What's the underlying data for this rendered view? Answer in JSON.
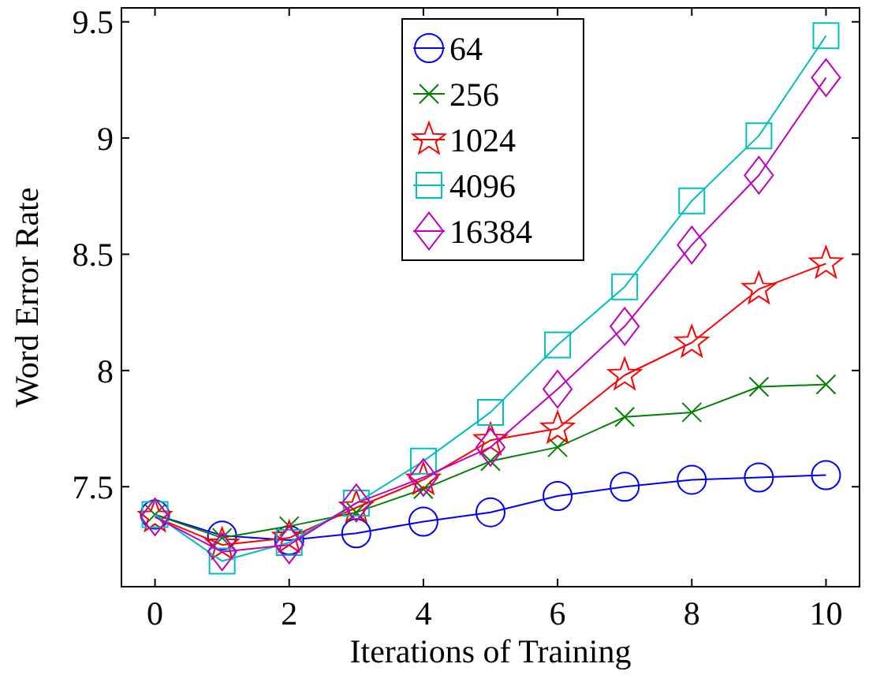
{
  "chart_data": {
    "type": "line",
    "xlabel": "Iterations of Training",
    "ylabel": "Word Error Rate",
    "x": [
      0,
      1,
      2,
      3,
      4,
      5,
      6,
      7,
      8,
      9,
      10
    ],
    "xlim": [
      -0.5,
      10.5
    ],
    "xticks": [
      0,
      2,
      4,
      6,
      8,
      10
    ],
    "ylim": [
      7.07,
      9.56
    ],
    "yticks": [
      7.5,
      8,
      8.5,
      9,
      9.5
    ],
    "grid": false,
    "legend": "top right",
    "line_style": "solid",
    "series": [
      {
        "name": "64",
        "color": "#0000ff",
        "marker": "circle",
        "values": [
          7.38,
          7.29,
          7.27,
          7.3,
          7.35,
          7.39,
          7.46,
          7.5,
          7.53,
          7.54,
          7.55
        ]
      },
      {
        "name": "256",
        "color": "#008000",
        "marker": "cross",
        "values": [
          7.38,
          7.28,
          7.33,
          7.39,
          7.49,
          7.61,
          7.67,
          7.8,
          7.82,
          7.93,
          7.94
        ]
      },
      {
        "name": "1024",
        "color": "#ff0000",
        "marker": "star",
        "values": [
          7.37,
          7.25,
          7.28,
          7.41,
          7.53,
          7.7,
          7.75,
          7.98,
          8.12,
          8.35,
          8.46
        ]
      },
      {
        "name": "4096",
        "color": "#00bfbf",
        "marker": "square",
        "values": [
          7.38,
          7.18,
          7.26,
          7.43,
          7.61,
          7.82,
          8.11,
          8.36,
          8.73,
          9.01,
          9.44
        ]
      },
      {
        "name": "16384",
        "color": "#bf00bf",
        "marker": "diamond",
        "values": [
          7.37,
          7.22,
          7.25,
          7.43,
          7.54,
          7.67,
          7.92,
          8.19,
          8.54,
          8.84,
          9.26
        ]
      }
    ]
  }
}
